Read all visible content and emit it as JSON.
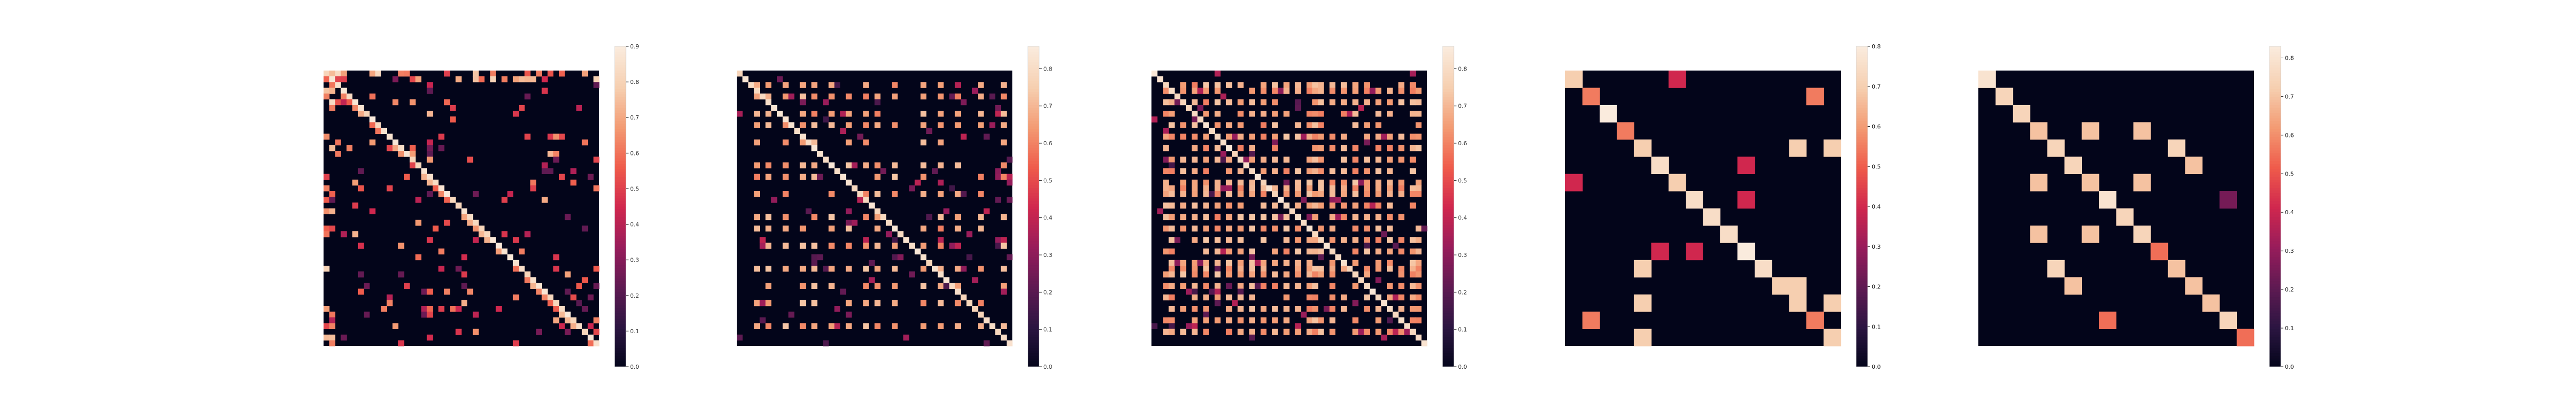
{
  "figure": {
    "background": "#ffffff"
  },
  "colormap": {
    "name": "rocket",
    "stops": [
      "#03051a",
      "#2b1541",
      "#5e1a52",
      "#971c5b",
      "#d0274e",
      "#ef5b4b",
      "#f39b73",
      "#f6cfb0",
      "#faebdd"
    ]
  },
  "chart_data": [
    {
      "type": "heatmap",
      "n": 48,
      "diagonal": 0.9,
      "scattered_bands": [
        0.25,
        0.45,
        0.55,
        0.65
      ],
      "top_border_rows": 2,
      "left_border_cols": 2,
      "colorbar": {
        "min": 0.0,
        "max": 0.9,
        "ticks": [
          "0.0",
          "0.1",
          "0.2",
          "0.3",
          "0.4",
          "0.5",
          "0.6",
          "0.7",
          "0.8",
          "0.9"
        ]
      }
    },
    {
      "type": "heatmap",
      "n": 48,
      "diagonal": 0.85,
      "grid_rows": [
        2,
        4,
        7,
        9,
        12,
        16,
        18,
        21,
        25,
        27,
        30,
        34,
        37,
        40,
        44
      ],
      "grid_cols": [
        3,
        5,
        8,
        11,
        13,
        16,
        19,
        22,
        24,
        27,
        32,
        35,
        38,
        42,
        46
      ],
      "grid_value": 0.7,
      "colorbar": {
        "min": 0.0,
        "max": 0.86,
        "ticks": [
          "0.0",
          "0.1",
          "0.2",
          "0.3",
          "0.4",
          "0.5",
          "0.6",
          "0.7",
          "0.8"
        ]
      }
    },
    {
      "type": "heatmap",
      "n": 48,
      "diagonal": 0.85,
      "grid_rows": [
        2,
        3,
        5,
        7,
        9,
        11,
        13,
        15,
        17,
        19,
        20,
        21,
        23,
        25,
        27,
        29,
        31,
        33,
        34,
        35,
        37,
        39,
        41,
        43,
        45
      ],
      "grid_cols": [
        2,
        3,
        5,
        7,
        9,
        11,
        13,
        15,
        17,
        19,
        21,
        23,
        25,
        27,
        28,
        29,
        31,
        33,
        35,
        37,
        39,
        41,
        43,
        45,
        46
      ],
      "grid_value": 0.7,
      "colorbar": {
        "min": 0.0,
        "max": 0.86,
        "ticks": [
          "0.0",
          "0.1",
          "0.2",
          "0.3",
          "0.4",
          "0.5",
          "0.6",
          "0.7",
          "0.8"
        ]
      }
    },
    {
      "type": "heatmap",
      "n": 16,
      "cells": [
        [
          0,
          0,
          0.7
        ],
        [
          1,
          1,
          0.55
        ],
        [
          2,
          2,
          0.8
        ],
        [
          3,
          3,
          0.55
        ],
        [
          4,
          4,
          0.7
        ],
        [
          5,
          5,
          0.75
        ],
        [
          6,
          6,
          0.7
        ],
        [
          7,
          7,
          0.75
        ],
        [
          8,
          8,
          0.75
        ],
        [
          9,
          9,
          0.75
        ],
        [
          10,
          10,
          0.8
        ],
        [
          11,
          11,
          0.75
        ],
        [
          12,
          12,
          0.7
        ],
        [
          13,
          13,
          0.7
        ],
        [
          14,
          14,
          0.55
        ],
        [
          15,
          15,
          0.7
        ],
        [
          0,
          6,
          0.4
        ],
        [
          1,
          14,
          0.55
        ],
        [
          4,
          13,
          0.7
        ],
        [
          4,
          15,
          0.7
        ],
        [
          5,
          10,
          0.4
        ],
        [
          6,
          0,
          0.4
        ],
        [
          7,
          10,
          0.4
        ],
        [
          10,
          5,
          0.4
        ],
        [
          10,
          7,
          0.4
        ],
        [
          11,
          4,
          0.7
        ],
        [
          12,
          13,
          0.7
        ],
        [
          13,
          4,
          0.7
        ],
        [
          13,
          15,
          0.7
        ],
        [
          14,
          1,
          0.55
        ],
        [
          15,
          4,
          0.7
        ]
      ],
      "colorbar": {
        "min": 0.0,
        "max": 0.8,
        "ticks": [
          "0.0",
          "0.1",
          "0.2",
          "0.3",
          "0.4",
          "0.5",
          "0.6",
          "0.7",
          "0.8"
        ]
      }
    },
    {
      "type": "heatmap",
      "n": 16,
      "cells": [
        [
          0,
          0,
          0.8
        ],
        [
          1,
          1,
          0.75
        ],
        [
          2,
          2,
          0.75
        ],
        [
          3,
          3,
          0.7
        ],
        [
          4,
          4,
          0.75
        ],
        [
          5,
          5,
          0.75
        ],
        [
          6,
          6,
          0.7
        ],
        [
          7,
          7,
          0.8
        ],
        [
          8,
          8,
          0.75
        ],
        [
          9,
          9,
          0.75
        ],
        [
          10,
          10,
          0.55
        ],
        [
          11,
          11,
          0.7
        ],
        [
          12,
          12,
          0.7
        ],
        [
          13,
          13,
          0.7
        ],
        [
          14,
          14,
          0.75
        ],
        [
          15,
          15,
          0.55
        ],
        [
          3,
          6,
          0.7
        ],
        [
          3,
          9,
          0.7
        ],
        [
          6,
          3,
          0.7
        ],
        [
          6,
          9,
          0.7
        ],
        [
          9,
          3,
          0.7
        ],
        [
          9,
          6,
          0.7
        ],
        [
          5,
          12,
          0.7
        ],
        [
          12,
          5,
          0.7
        ],
        [
          4,
          11,
          0.75
        ],
        [
          11,
          4,
          0.75
        ],
        [
          14,
          7,
          0.55
        ],
        [
          7,
          14,
          0.25
        ]
      ],
      "colorbar": {
        "min": 0.0,
        "max": 0.83,
        "ticks": [
          "0.0",
          "0.1",
          "0.2",
          "0.3",
          "0.4",
          "0.5",
          "0.6",
          "0.7",
          "0.8"
        ]
      }
    }
  ]
}
